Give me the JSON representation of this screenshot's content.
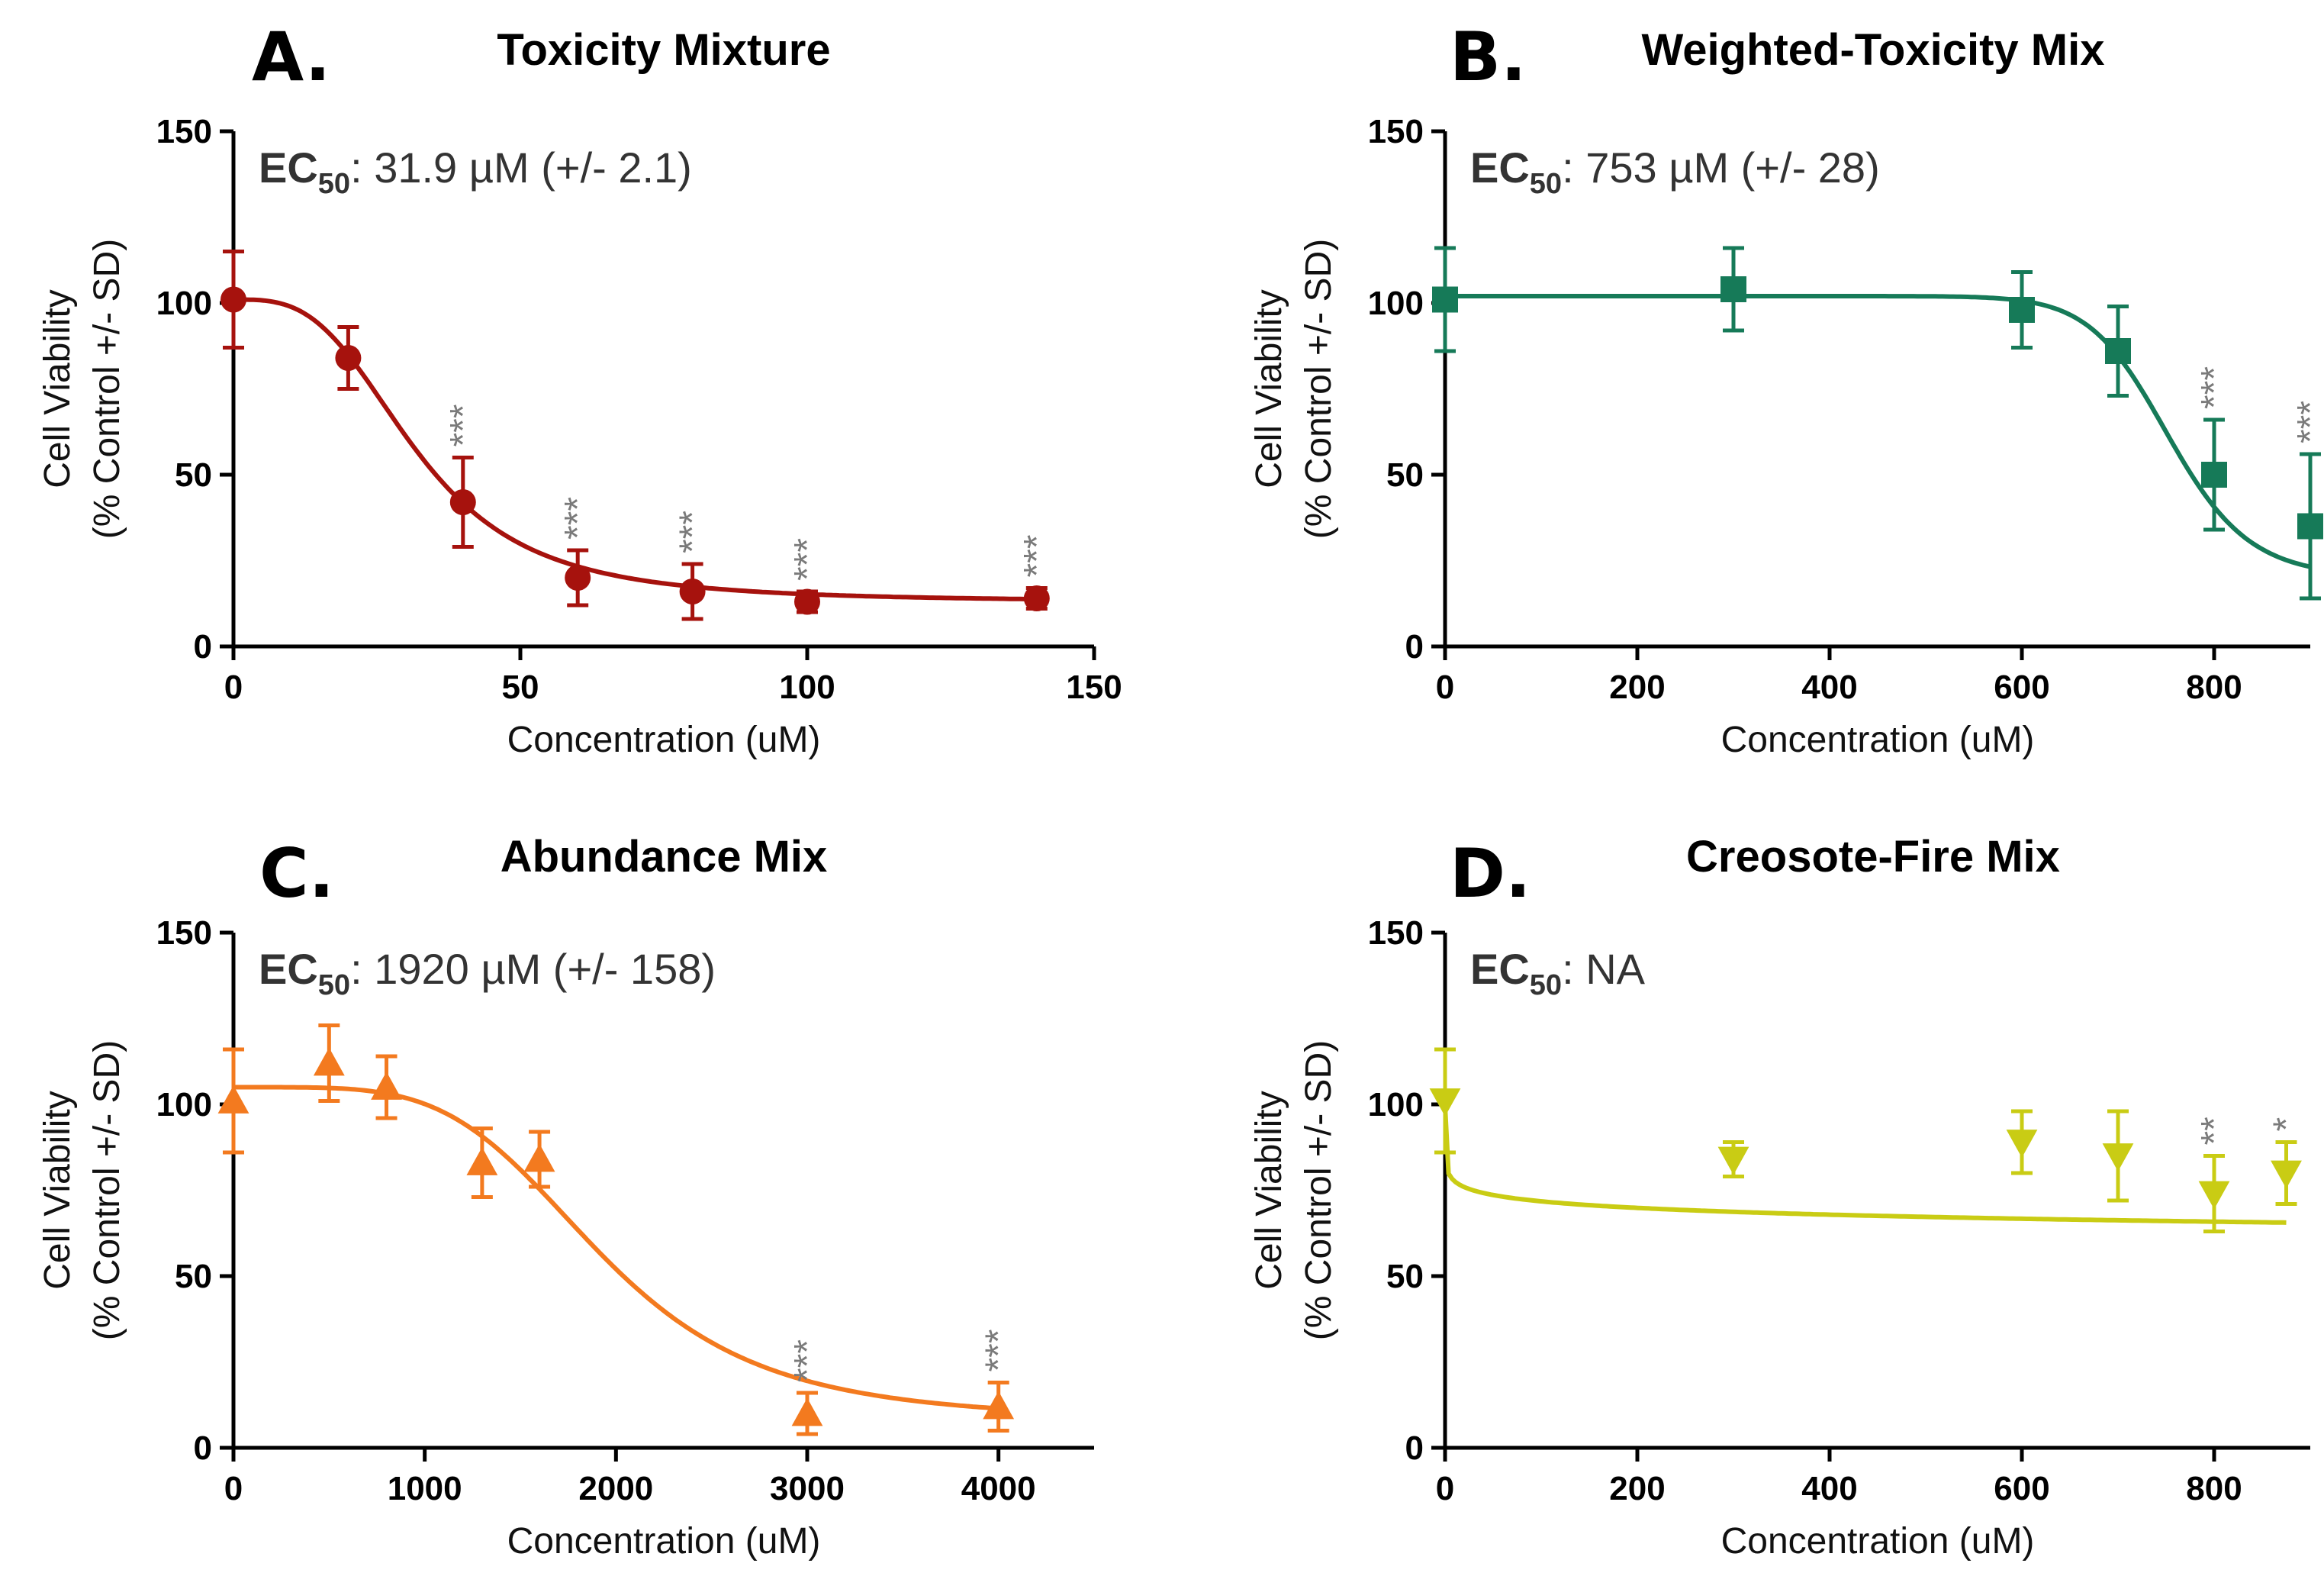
{
  "figure": {
    "x_axis_label": "Concentration (uM)",
    "y_axis_label_line1": "Cell Viability",
    "y_axis_label_line2": "(% Control +/- SD)"
  },
  "chart_data": [
    {
      "type": "scatter",
      "panel_label": "A.",
      "title": "Toxicity Mixture",
      "ec50_prefix": "EC",
      "ec50_sub": "50",
      "ec50_value": ": 31.9 µM (+/- 2.1)",
      "color": "#a6120d",
      "marker": "circle",
      "xlabel": "Concentration (uM)",
      "ylabel": "Cell Viability (% Control +/- SD)",
      "xlim": [
        0,
        150
      ],
      "ylim": [
        0,
        150
      ],
      "xticks": [
        0,
        50,
        100,
        150
      ],
      "xtick_labels": [
        "0",
        "50",
        "100",
        "150"
      ],
      "yticks": [
        0,
        50,
        100,
        150
      ],
      "ytick_labels": [
        "0",
        "50",
        "100",
        "150"
      ],
      "points": [
        {
          "x": 0,
          "y": 101,
          "err": 14,
          "sig": ""
        },
        {
          "x": 20,
          "y": 84,
          "err": 9,
          "sig": ""
        },
        {
          "x": 40,
          "y": 42,
          "err": 13,
          "sig": "***"
        },
        {
          "x": 60,
          "y": 20,
          "err": 8,
          "sig": "***"
        },
        {
          "x": 80,
          "y": 16,
          "err": 8,
          "sig": "***"
        },
        {
          "x": 100,
          "y": 13,
          "err": 3,
          "sig": "***"
        },
        {
          "x": 140,
          "y": 14,
          "err": 3,
          "sig": "***"
        }
      ],
      "fit": {
        "top": 101,
        "bottom": 13,
        "ec50": 31.9,
        "hill": 3.2,
        "log_x": false
      }
    },
    {
      "type": "scatter",
      "panel_label": "B.",
      "title": "Weighted-Toxicity Mix",
      "ec50_prefix": "EC",
      "ec50_sub": "50",
      "ec50_value": ": 753 µM (+/- 28)",
      "color": "#167a58",
      "marker": "square",
      "xlabel": "Concentration (uM)",
      "ylabel": "Cell Viability (% Control +/- SD)",
      "xlim": [
        0,
        900
      ],
      "ylim": [
        0,
        150
      ],
      "xticks": [
        0,
        200,
        400,
        600,
        800
      ],
      "xtick_labels": [
        "0",
        "200",
        "400",
        "600",
        "800"
      ],
      "yticks": [
        0,
        50,
        100,
        150
      ],
      "ytick_labels": [
        "0",
        "50",
        "100",
        "150"
      ],
      "points": [
        {
          "x": 0,
          "y": 101,
          "err": 15,
          "sig": ""
        },
        {
          "x": 300,
          "y": 104,
          "err": 12,
          "sig": ""
        },
        {
          "x": 600,
          "y": 98,
          "err": 11,
          "sig": ""
        },
        {
          "x": 700,
          "y": 86,
          "err": 13,
          "sig": ""
        },
        {
          "x": 800,
          "y": 50,
          "err": 16,
          "sig": "***"
        },
        {
          "x": 900,
          "y": 35,
          "err": 21,
          "sig": "***"
        }
      ],
      "fit": {
        "top": 102,
        "bottom": 20,
        "ec50": 753,
        "hill": 18,
        "log_x": false
      }
    },
    {
      "type": "scatter",
      "panel_label": "C.",
      "title": "Abundance Mix",
      "ec50_prefix": "EC",
      "ec50_sub": "50",
      "ec50_value": ": 1920 µM (+/- 158)",
      "color": "#f37a1f",
      "marker": "triangle-up",
      "xlabel": "Concentration (uM)",
      "ylabel": "Cell Viability (% Control +/- SD)",
      "xlim": [
        0,
        4500
      ],
      "ylim": [
        0,
        150
      ],
      "xticks": [
        0,
        1000,
        2000,
        3000,
        4000
      ],
      "xtick_labels": [
        "0",
        "1000",
        "2000",
        "3000",
        "4000"
      ],
      "yticks": [
        0,
        50,
        100,
        150
      ],
      "ytick_labels": [
        "0",
        "50",
        "100",
        "150"
      ],
      "points": [
        {
          "x": 0,
          "y": 101,
          "err": 15,
          "sig": ""
        },
        {
          "x": 500,
          "y": 112,
          "err": 11,
          "sig": ""
        },
        {
          "x": 800,
          "y": 105,
          "err": 9,
          "sig": ""
        },
        {
          "x": 1300,
          "y": 83,
          "err": 10,
          "sig": ""
        },
        {
          "x": 1600,
          "y": 84,
          "err": 8,
          "sig": ""
        },
        {
          "x": 3000,
          "y": 10,
          "err": 6,
          "sig": "***"
        },
        {
          "x": 4000,
          "y": 12,
          "err": 7,
          "sig": "***"
        }
      ],
      "fit": {
        "top": 105,
        "bottom": 8,
        "ec50": 1920,
        "hill": 4.5,
        "log_x": false
      }
    },
    {
      "type": "scatter",
      "panel_label": "D.",
      "title": "Creosote-Fire Mix",
      "ec50_prefix": "EC",
      "ec50_sub": "50",
      "ec50_value": ": NA",
      "color": "#c9cc14",
      "marker": "triangle-down",
      "xlabel": "Concentration (uM)",
      "ylabel": "Cell Viability (% Control +/- SD)",
      "xlim": [
        0,
        900
      ],
      "ylim": [
        0,
        150
      ],
      "xticks": [
        0,
        200,
        400,
        600,
        800
      ],
      "xtick_labels": [
        "0",
        "200",
        "400",
        "600",
        "800"
      ],
      "yticks": [
        0,
        50,
        100,
        150
      ],
      "ytick_labels": [
        "0",
        "50",
        "100",
        "150"
      ],
      "points": [
        {
          "x": 0,
          "y": 101,
          "err": 15,
          "sig": ""
        },
        {
          "x": 300,
          "y": 84,
          "err": 5,
          "sig": ""
        },
        {
          "x": 600,
          "y": 89,
          "err": 9,
          "sig": ""
        },
        {
          "x": 700,
          "y": 85,
          "err": 13,
          "sig": ""
        },
        {
          "x": 800,
          "y": 74,
          "err": 11,
          "sig": "**"
        },
        {
          "x": 875,
          "y": 80,
          "err": 9,
          "sig": "*"
        }
      ],
      "fit": {
        "top": 101,
        "bottom": 0,
        "ec50": 100000,
        "hill": 0.13,
        "log_x": false
      }
    }
  ]
}
